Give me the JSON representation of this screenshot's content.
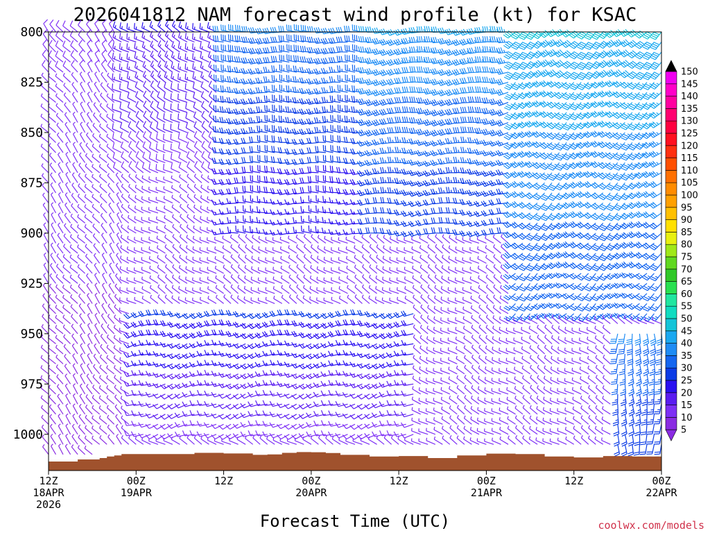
{
  "chart_data": {
    "type": "wind_barb_time_height",
    "title": "2026041812 NAM forecast wind profile (kt) for KSAC",
    "xlabel": "Forecast Time (UTC)",
    "ylabel": "",
    "credit": "coolwx.com/models",
    "y_axis": {
      "unit": "hPa",
      "range": [
        800,
        1018
      ],
      "ticks": [
        800,
        825,
        850,
        875,
        900,
        925,
        950,
        975,
        1000
      ],
      "tick_labels": [
        "800",
        "825",
        "850",
        "875",
        "900",
        "925",
        "950",
        "975",
        "1000"
      ]
    },
    "x_axis": {
      "unit": "forecast hour",
      "range": [
        0,
        84
      ],
      "ticks": [
        {
          "hour": 0,
          "lines": [
            "12Z",
            "18APR",
            "2026"
          ]
        },
        {
          "hour": 12,
          "lines": [
            "00Z",
            "19APR"
          ]
        },
        {
          "hour": 24,
          "lines": [
            "12Z"
          ]
        },
        {
          "hour": 36,
          "lines": [
            "00Z",
            "20APR"
          ]
        },
        {
          "hour": 48,
          "lines": [
            "12Z"
          ]
        },
        {
          "hour": 60,
          "lines": [
            "00Z",
            "21APR"
          ]
        },
        {
          "hour": 72,
          "lines": [
            "12Z"
          ]
        },
        {
          "hour": 84,
          "lines": [
            "00Z",
            "22APR"
          ]
        }
      ]
    },
    "colorbar": {
      "unit": "kt",
      "levels": [
        5,
        10,
        15,
        20,
        25,
        30,
        35,
        40,
        45,
        50,
        55,
        60,
        65,
        70,
        75,
        80,
        85,
        90,
        95,
        100,
        105,
        110,
        115,
        120,
        125,
        130,
        135,
        140,
        145,
        150
      ],
      "colors": [
        "#8a2be2",
        "#7d2ff5",
        "#5a1cf0",
        "#2a10f0",
        "#0a3be6",
        "#1466f0",
        "#1e8cf5",
        "#1aa8f0",
        "#14c4d8",
        "#10dcc0",
        "#20e6a0",
        "#28e050",
        "#30c828",
        "#60d820",
        "#a0e818",
        "#e8f010",
        "#ffe000",
        "#ffc000",
        "#ffa000",
        "#ff8c00",
        "#ff7000",
        "#ff5000",
        "#ff3010",
        "#ff1020",
        "#ff0040",
        "#ff0070",
        "#ff00a0",
        "#ff00c8",
        "#f000f0",
        "#000000"
      ]
    },
    "barb_grid": {
      "hour_step": 1,
      "levels_hPa": [
        800,
        805,
        810,
        815,
        820,
        825,
        830,
        835,
        840,
        845,
        850,
        855,
        860,
        865,
        870,
        875,
        880,
        885,
        890,
        895,
        900,
        905,
        910,
        915,
        920,
        925,
        930,
        935,
        940,
        945,
        950,
        955,
        960,
        965,
        970,
        975,
        980,
        985,
        990,
        995,
        1000,
        1005,
        1010
      ]
    },
    "wind_regimes": [
      {
        "hours": [
          0,
          10
        ],
        "levels": [
          800,
          1010
        ],
        "dir_deg": 320,
        "speed_kt": [
          3,
          8
        ]
      },
      {
        "hours": [
          10,
          24
        ],
        "levels": [
          800,
          870
        ],
        "dir_deg": 300,
        "speed_kt": [
          8,
          15
        ]
      },
      {
        "hours": [
          24,
          44
        ],
        "levels": [
          800,
          900
        ],
        "dir_deg": 270,
        "speed_kt": [
          15,
          30
        ]
      },
      {
        "hours": [
          44,
          64
        ],
        "levels": [
          800,
          900
        ],
        "dir_deg": 260,
        "speed_kt": [
          20,
          35
        ]
      },
      {
        "hours": [
          64,
          84
        ],
        "levels": [
          800,
          940
        ],
        "dir_deg": 230,
        "speed_kt": [
          25,
          40
        ]
      },
      {
        "hours": [
          12,
          50
        ],
        "levels": [
          940,
          1000
        ],
        "dir_deg": 250,
        "speed_kt": [
          8,
          20
        ]
      },
      {
        "hours": [
          78,
          84
        ],
        "levels": [
          950,
          1005
        ],
        "dir_deg": 180,
        "speed_kt": [
          20,
          30
        ]
      }
    ],
    "terrain": {
      "description": "model surface pressure",
      "unit": "hPa",
      "hours": [
        0,
        4,
        7,
        8,
        9,
        10,
        12,
        16,
        20,
        24,
        28,
        30,
        32,
        34,
        36,
        38,
        40,
        44,
        48,
        52,
        56,
        60,
        64,
        68,
        72,
        76,
        80,
        84
      ],
      "pressure": [
        1013.5,
        1012.5,
        1011.8,
        1011,
        1010.5,
        1009.8,
        1009.8,
        1009.8,
        1009.2,
        1009.5,
        1010.2,
        1010,
        1009.2,
        1008.8,
        1008.9,
        1009.3,
        1010.2,
        1011,
        1010.8,
        1011.8,
        1010.5,
        1009.6,
        1009.8,
        1011,
        1011.5,
        1010.8,
        1011,
        1011.5
      ],
      "fill_color": "#a0522d"
    }
  }
}
